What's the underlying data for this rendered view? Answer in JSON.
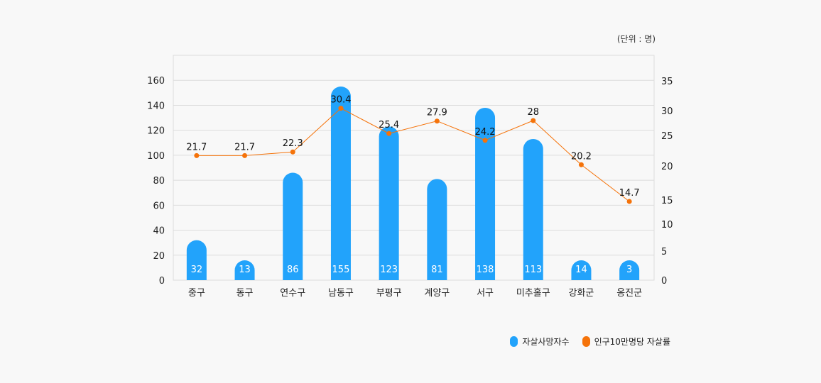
{
  "unit_label": "(단위 : 명)",
  "colors": {
    "bar": "#22a3fb",
    "line": "#f5730a",
    "grid": "#dcdcdc"
  },
  "chart_data": {
    "type": "bar",
    "categories": [
      "중구",
      "동구",
      "연수구",
      "남동구",
      "부평구",
      "계양구",
      "서구",
      "미추홀구",
      "강화군",
      "옹진군"
    ],
    "series": [
      {
        "name": "자살사망자수",
        "type": "bar",
        "axis": "left",
        "values": [
          32,
          13,
          86,
          155,
          123,
          81,
          138,
          113,
          14,
          3
        ]
      },
      {
        "name": "인구10만명당 자살률",
        "type": "line",
        "axis": "right",
        "values": [
          21.7,
          21.7,
          22.3,
          30.4,
          25.4,
          27.9,
          24.2,
          28,
          20.2,
          14.7
        ]
      }
    ],
    "y_left": {
      "ticks": [
        0,
        20,
        40,
        60,
        80,
        100,
        120,
        140,
        160
      ],
      "range": [
        0,
        180
      ]
    },
    "y_right": {
      "ticks": [
        0,
        5,
        10,
        15,
        20,
        25,
        30,
        35
      ]
    },
    "grid": true,
    "legend": "bottom-right"
  }
}
